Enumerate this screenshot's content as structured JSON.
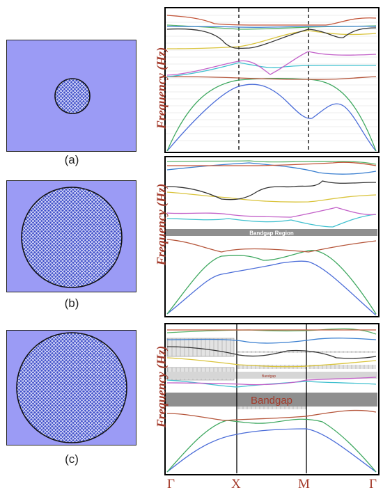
{
  "panels": [
    {
      "label": "(a)",
      "inclusion_fraction": 0.27,
      "gap_label": "",
      "gap_sublabel": ""
    },
    {
      "label": "(b)",
      "inclusion_fraction": 0.79,
      "gap_label": "Bandgap Region",
      "gap_sublabel": ""
    },
    {
      "label": "(c)",
      "inclusion_fraction": 0.99,
      "gap_label": "Bandgap",
      "gap_sublabel": "Bandgap"
    }
  ],
  "y_axis_label": "Frequency (Hz)",
  "k_points": [
    "Γ",
    "X",
    "M",
    "Γ"
  ],
  "colors": {
    "matrix": "#9b9bf5",
    "inclusion": "#3f4fc8",
    "label_red": "#a33a2a",
    "bandgap_gray": "#8f8f8f"
  },
  "band_colors": [
    "#4a6cd8",
    "#3fa860",
    "#b5553a",
    "#3fc0cf",
    "#c260c8",
    "#d9c33a",
    "#333333",
    "#58b36a",
    "#3a7fd0",
    "#c25438"
  ]
}
